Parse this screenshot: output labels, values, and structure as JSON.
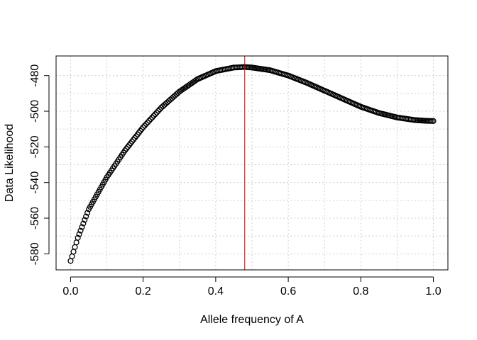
{
  "chart_data": {
    "type": "scatter",
    "title": "",
    "xlabel": "Allele frequency of A",
    "ylabel": "Data Likelihood",
    "xlim": [
      -0.04,
      1.04
    ],
    "ylim": [
      -589,
      -469
    ],
    "x_ticks": [
      0.0,
      0.2,
      0.4,
      0.6,
      0.8,
      1.0
    ],
    "x_tick_labels": [
      "0.0",
      "0.2",
      "0.4",
      "0.6",
      "0.8",
      "1.0"
    ],
    "y_ticks": [
      -580,
      -560,
      -540,
      -520,
      -500,
      -480
    ],
    "y_tick_labels": [
      "-580",
      "-560",
      "-540",
      "-520",
      "-500",
      "-480"
    ],
    "grid": true,
    "grid_style": "dotted",
    "marker": "open-circle",
    "series": [
      {
        "color": "#000000",
        "x": [
          0.0,
          0.02,
          0.05,
          0.1,
          0.15,
          0.2,
          0.25,
          0.3,
          0.35,
          0.4,
          0.45,
          0.48,
          0.5,
          0.55,
          0.6,
          0.65,
          0.7,
          0.75,
          0.8,
          0.85,
          0.9,
          0.95,
          0.98,
          1.0
        ],
        "y": [
          -584,
          -571,
          -555,
          -537,
          -522,
          -509,
          -498,
          -489,
          -482,
          -477.5,
          -475.5,
          -475.2,
          -475.5,
          -477,
          -480,
          -484,
          -488.5,
          -493,
          -497.5,
          -501,
          -503.5,
          -505,
          -505.4,
          -505.5
        ]
      }
    ],
    "vline": {
      "x": 0.48,
      "color": "#cc0000"
    }
  }
}
